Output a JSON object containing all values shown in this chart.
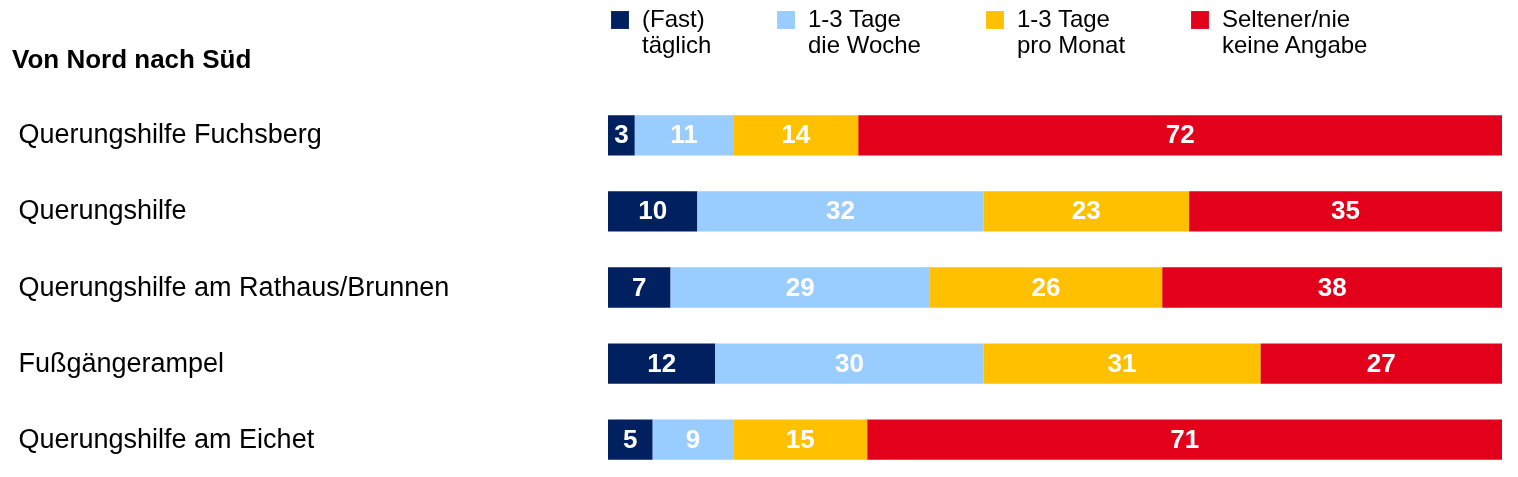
{
  "chart_data": {
    "type": "bar",
    "orientation": "horizontal",
    "stacked": true,
    "title": "Von Nord nach Süd",
    "categories": [
      "Querungshilfe Fuchsberg",
      "Querungshilfe",
      "Querungshilfe am Rathaus/Brunnen",
      "Fußgängerampel",
      "Querungshilfe am Eichet"
    ],
    "series": [
      {
        "name": "(Fast)\ntäglich",
        "color": "#002060",
        "values": [
          3,
          10,
          7,
          12,
          5
        ]
      },
      {
        "name": "1-3 Tage\ndie Woche",
        "color": "#99ccff",
        "values": [
          11,
          32,
          29,
          30,
          9
        ]
      },
      {
        "name": "1-3 Tage\npro Monat",
        "color": "#ffc000",
        "values": [
          14,
          23,
          26,
          31,
          15
        ]
      },
      {
        "name": "Seltener/nie\nkeine Angabe",
        "color": "#e3001b",
        "values": [
          72,
          35,
          38,
          27,
          71
        ]
      }
    ],
    "xlim": [
      0,
      100
    ],
    "tick_labels": "y",
    "data_labels": true,
    "legend": "top"
  }
}
